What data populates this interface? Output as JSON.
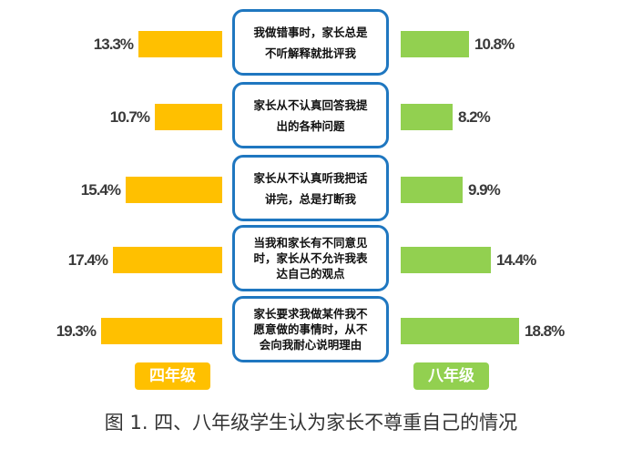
{
  "chart_data": {
    "type": "bar",
    "orientation": "horizontal-butterfly",
    "title": "图 1. 四、八年级学生认为家长不尊重自己的情况",
    "categories": [
      "我做错事时，家长总是不听解释就批评我",
      "家长从不认真回答我提出的各种问题",
      "家长从不认真听我把话讲完，总是打断我",
      "当我和家长有不同意见时，家长从不允许我表达自己的观点",
      "家长要求我做某件我不愿意做的事情时，从不会向我耐心说明理由"
    ],
    "series": [
      {
        "name": "四年级",
        "color": "#FFC000",
        "values": [
          13.3,
          10.7,
          15.4,
          17.4,
          19.3
        ]
      },
      {
        "name": "八年级",
        "color": "#92D050",
        "values": [
          10.8,
          8.2,
          9.9,
          14.4,
          18.8
        ]
      }
    ],
    "unit": "%",
    "legend_position": "bottom",
    "grid": false
  },
  "rows": [
    {
      "line1": "我做错事时，家长总是",
      "line2": "不听解释就批评我",
      "line3": "",
      "left_label": "13.3%",
      "right_label": "10.8%"
    },
    {
      "line1": "家长从不认真回答我提",
      "line2": "出的各种问题",
      "line3": "",
      "left_label": "10.7%",
      "right_label": "8.2%"
    },
    {
      "line1": "家长从不认真听我把话",
      "line2": "讲完，总是打断我",
      "line3": "",
      "left_label": "15.4%",
      "right_label": "9.9%"
    },
    {
      "line1": "当我和家长有不同意见",
      "line2": "时，家长从不允许我表",
      "line3": "达自己的观点",
      "left_label": "17.4%",
      "right_label": "14.4%"
    },
    {
      "line1": "家长要求我做某件我不",
      "line2": "愿意做的事情时，从不",
      "line3": "会向我耐心说明理由",
      "left_label": "19.3%",
      "right_label": "18.8%"
    }
  ],
  "legend": {
    "left": "四年级",
    "right": "八年级"
  },
  "caption": "图 1.  四、八年级学生认为家长不尊重自己的情况"
}
